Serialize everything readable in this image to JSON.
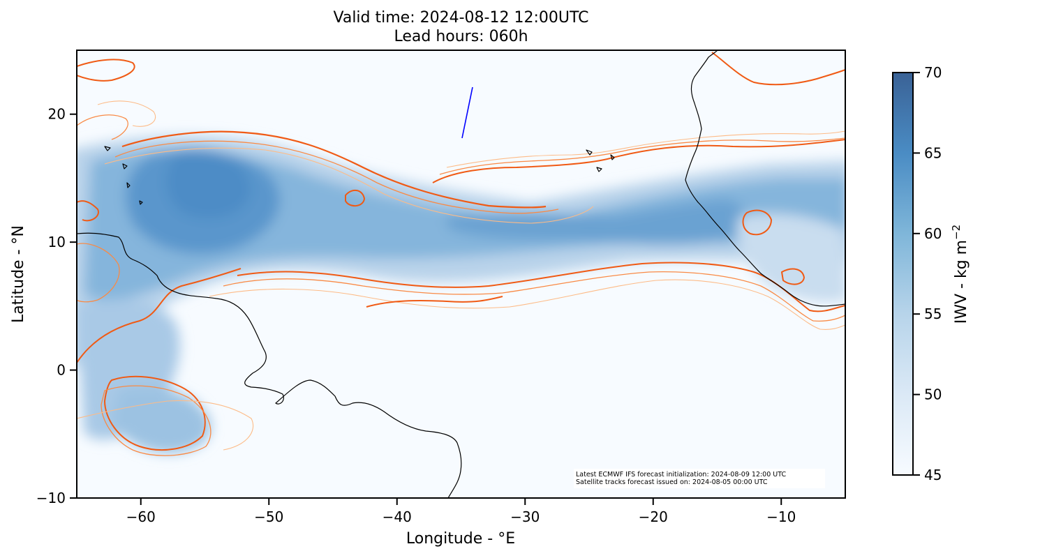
{
  "title_line1": "Valid time: 2024-08-12 12:00UTC",
  "title_line2": "Lead hours: 060h",
  "colors": {
    "background": "#f7fbff",
    "iwv_low": "#f7fbff",
    "iwv_high": "#2e6aaa",
    "contour_dark": "#f05a14",
    "contour_mid": "#f98a45",
    "contour_light": "#fdbb87",
    "coastline": "#000000",
    "satellite_track": "#0000ff"
  },
  "chart_data": {
    "type": "map",
    "projection": "PlateCarree",
    "xlabel": "Longitude - °E",
    "ylabel": "Latitude - °N",
    "xlim": [
      -65,
      -5
    ],
    "ylim": [
      -10,
      25
    ],
    "x_ticks": [
      -60,
      -50,
      -40,
      -30,
      -20,
      -10
    ],
    "x_tick_labels": [
      "−60",
      "−50",
      "−40",
      "−30",
      "−20",
      "−10"
    ],
    "y_ticks": [
      -10,
      0,
      10,
      20
    ],
    "y_tick_labels": [
      "−10",
      "0",
      "10",
      "20"
    ],
    "field": "IWV",
    "colorbar": {
      "label": "IWV - kg m",
      "label_superscript": "−2",
      "min": 45,
      "max": 70,
      "ticks": [
        45,
        50,
        55,
        60,
        65,
        70
      ],
      "tick_labels": [
        "45",
        "50",
        "55",
        "60",
        "65",
        "70"
      ],
      "colormap": "Blues"
    },
    "satellite_track": [
      [
        -35,
        18
      ],
      [
        -34,
        22
      ]
    ],
    "iwv_band_center": [
      [
        -65,
        13.5
      ],
      [
        -55,
        15
      ],
      [
        -45,
        13.5
      ],
      [
        -35,
        11.5
      ],
      [
        -25,
        11.5
      ],
      [
        -17,
        11.5
      ],
      [
        -5,
        12
      ]
    ]
  },
  "annotations": {
    "line1": "Latest ECMWF IFS forecast initialization: 2024-08-09 12:00 UTC",
    "line2": "Satellite tracks forecast issued on: 2024-08-05 00:00 UTC"
  }
}
